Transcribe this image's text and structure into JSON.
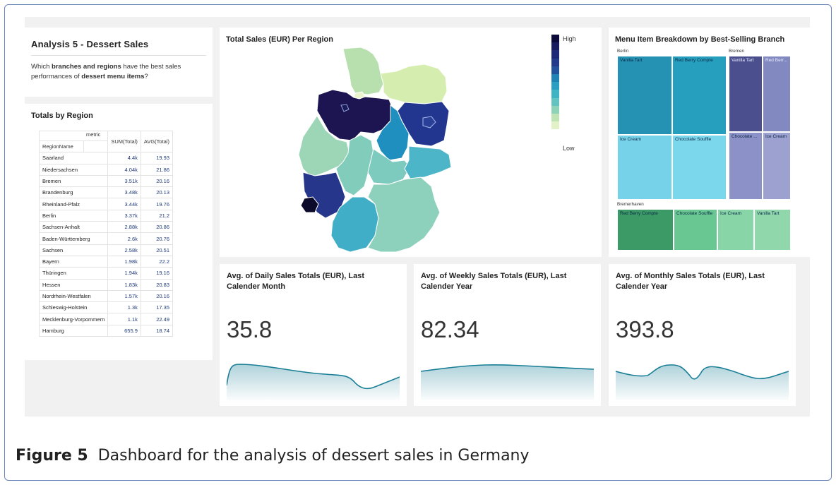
{
  "intro": {
    "title": "Analysis 5 - Dessert Sales",
    "q_part1": "Which ",
    "q_bold1": "branches and regions",
    "q_part2": " have the best sales performances of ",
    "q_bold2": "dessert menu items",
    "q_part3": "?"
  },
  "totals": {
    "title": "Totals by Region",
    "metric_label": "metric",
    "region_header": "RegionName",
    "sum_header": "SUM(Total)",
    "avg_header": "AVG(Total)",
    "rows": [
      {
        "region": "Saarland",
        "sum": "4.4k",
        "avg": "19.93"
      },
      {
        "region": "Niedersachsen",
        "sum": "4.04k",
        "avg": "21.86"
      },
      {
        "region": "Bremen",
        "sum": "3.51k",
        "avg": "20.16"
      },
      {
        "region": "Brandenburg",
        "sum": "3.48k",
        "avg": "20.13"
      },
      {
        "region": "Rheinland-Pfalz",
        "sum": "3.44k",
        "avg": "19.76"
      },
      {
        "region": "Berlin",
        "sum": "3.37k",
        "avg": "21.2"
      },
      {
        "region": "Sachsen-Anhalt",
        "sum": "2.88k",
        "avg": "20.86"
      },
      {
        "region": "Baden-Württemberg",
        "sum": "2.6k",
        "avg": "20.76"
      },
      {
        "region": "Sachsen",
        "sum": "2.58k",
        "avg": "20.51"
      },
      {
        "region": "Bayern",
        "sum": "1.98k",
        "avg": "22.2"
      },
      {
        "region": "Thüringen",
        "sum": "1.94k",
        "avg": "19.16"
      },
      {
        "region": "Hessen",
        "sum": "1.83k",
        "avg": "20.83"
      },
      {
        "region": "Nordrhein-Westfalen",
        "sum": "1.57k",
        "avg": "20.16"
      },
      {
        "region": "Schleswig-Holstein",
        "sum": "1.3k",
        "avg": "17.35"
      },
      {
        "region": "Mecklenburg-Vorpommern",
        "sum": "1.1k",
        "avg": "22.49"
      },
      {
        "region": "Hamburg",
        "sum": "655.9",
        "avg": "18.74"
      }
    ]
  },
  "map": {
    "title": "Total Sales (EUR) Per Region",
    "legend_high": "High",
    "legend_low": "Low",
    "legend_colors": [
      "#0b0a3a",
      "#181c5e",
      "#1c2a78",
      "#213a8a",
      "#23529c",
      "#1f84b4",
      "#2b9fc2",
      "#3fb4c4",
      "#62c3c0",
      "#8ed2b8",
      "#bfe3b4",
      "#e2f1c8"
    ],
    "region_colors": {
      "schleswig_holstein": "#b8dfae",
      "mecklenburg_vorpommern": "#d5edaf",
      "hamburg": "#e9f4cd",
      "niedersachsen": "#1c1552",
      "bremen": "#1d1a5a",
      "brandenburg": "#223690",
      "berlin": "#2a3f98",
      "sachsen_anhalt": "#1e8fbe",
      "nordrhein_westfalen": "#9cd6b6",
      "hessen": "#82ccbc",
      "thueringen": "#7ccbbe",
      "sachsen": "#4cb5c7",
      "rheinland_pfalz": "#26368a",
      "saarland": "#0b0a2a",
      "baden_wuerttemberg": "#40aec6",
      "bayern": "#8dd1bc"
    }
  },
  "treemap": {
    "title": "Menu Item Breakdown by Best-Selling Branch",
    "groups": [
      {
        "name": "Berlin",
        "items": [
          {
            "label": "Vanilla Tart",
            "color": "#2592b4"
          },
          {
            "label": "Red Berry Compte",
            "color": "#259fbd"
          },
          {
            "label": "Ice Cream",
            "color": "#76d2e8"
          },
          {
            "label": "Chocolate Souffle",
            "color": "#7bd7ec"
          }
        ]
      },
      {
        "name": "Bremen",
        "items": [
          {
            "label": "Vanilla Tart",
            "color": "#4b4f8e"
          },
          {
            "label": "Red Berr...",
            "color": "#8289c0"
          },
          {
            "label": "Chocolate ...",
            "color": "#8c92c8"
          },
          {
            "label": "Ice Cream",
            "color": "#9da1cf"
          }
        ]
      },
      {
        "name": "Bremerhaven",
        "items": [
          {
            "label": "Red Berry Compte",
            "color": "#3c9a66"
          },
          {
            "label": "Chocolate Souffle",
            "color": "#69c891"
          },
          {
            "label": "Ice Cream",
            "color": "#88d6a7"
          },
          {
            "label": "Vanilla Tart",
            "color": "#90d8ac"
          }
        ]
      }
    ]
  },
  "kpis": [
    {
      "title": "Avg. of Daily Sales Totals (EUR), Last Calender Month",
      "value": "35.8"
    },
    {
      "title": "Avg. of Weekly Sales Totals (EUR), Last Calender Year",
      "value": "82.34"
    },
    {
      "title": "Avg. of Monthly Sales Totals (EUR), Last Calender Year",
      "value": "393.8"
    }
  ],
  "caption": {
    "label": "Figure 5",
    "text": "Dashboard for the analysis of dessert sales in Germany"
  },
  "colors": {
    "sparkline": "#1a7f96",
    "panel_bg": "#f1f1f1",
    "frame_border": "#6a86b8"
  }
}
